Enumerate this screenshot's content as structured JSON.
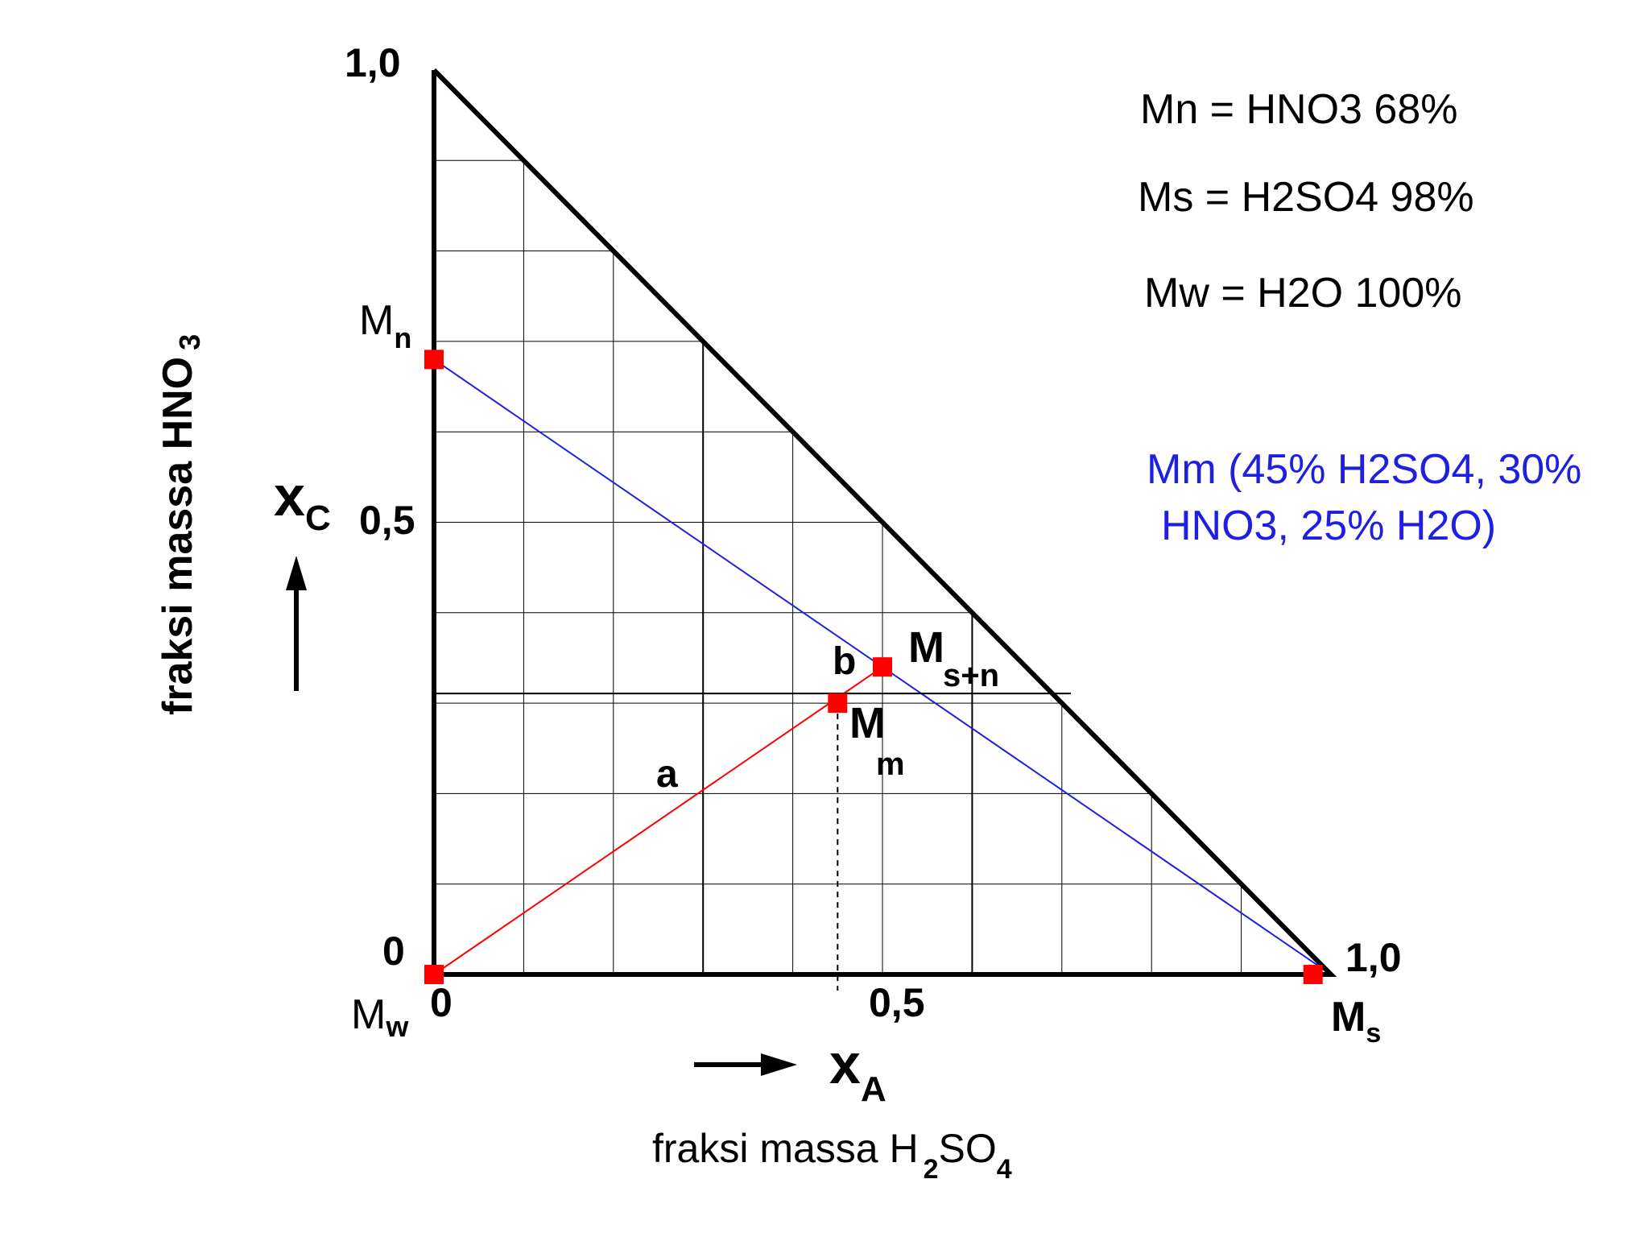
{
  "axes": {
    "y_top_tick": "1,0",
    "y_mid_tick": "0,5",
    "y_zero_tick": "0",
    "x_zero_tick": "0",
    "x_mid_tick": "0,5",
    "x_end_tick": "1,0",
    "y_symbol": "x",
    "y_symbol_sub": "C",
    "x_symbol": "x",
    "x_symbol_sub": "A",
    "y_title_main": "fraksi massa HNO",
    "y_title_sub": "3",
    "x_title_main": "fraksi massa H",
    "x_title_sub": "2",
    "x_title_mid": "SO",
    "x_title_sub2": "4"
  },
  "points": {
    "mn": {
      "label": "M",
      "sub": "n",
      "xa": 0.0,
      "xc": 0.68
    },
    "mw": {
      "label": "M",
      "sub": "w",
      "xa": 0.0,
      "xc": 0.0
    },
    "ms": {
      "label": "M",
      "sub": "s",
      "xa": 0.98,
      "xc": 0.0
    },
    "msn": {
      "label": "M",
      "sub": "s+n",
      "xa": 0.5,
      "xc": 0.34
    },
    "mm": {
      "label": "M",
      "sub": "m",
      "xa": 0.45,
      "xc": 0.3
    }
  },
  "segment_labels": {
    "a": "a",
    "b": "b"
  },
  "legend": {
    "mn": "Mn = HNO3 68%",
    "ms": "Ms = H2SO4 98%",
    "mw": "Mw = H2O 100%",
    "mm_line1": "Mm (45% H2SO4, 30%",
    "mm_line2": "HNO3, 25% H2O)"
  },
  "colors": {
    "marker": "#ff0000",
    "red_line": "#ff0000",
    "blue_line": "#1f1fe0",
    "grid": "#000000"
  }
}
